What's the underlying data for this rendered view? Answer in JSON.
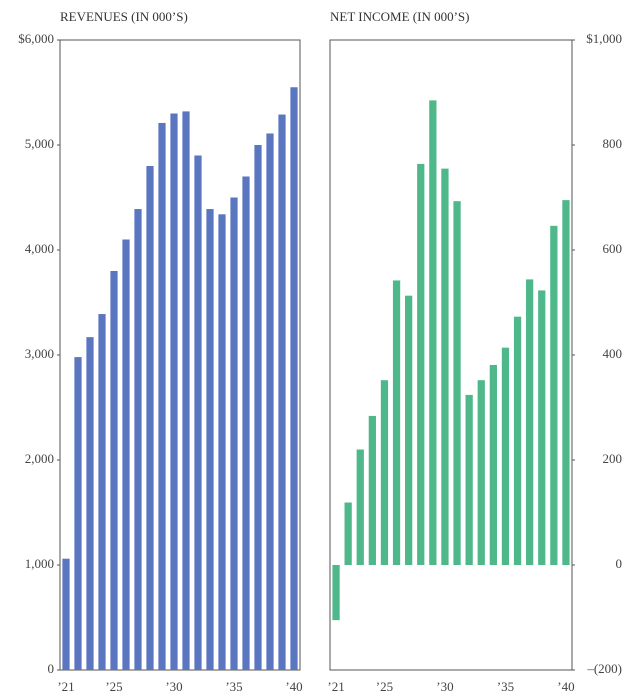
{
  "chart_data": [
    {
      "type": "bar",
      "title": "REVENUES (IN 000’S)",
      "categories": [
        "’21",
        null,
        null,
        null,
        "’25",
        null,
        null,
        null,
        null,
        "’30",
        null,
        null,
        null,
        null,
        "’35",
        null,
        null,
        null,
        null,
        "’40"
      ],
      "values": [
        1060,
        2980,
        3170,
        3390,
        3800,
        4100,
        4390,
        4800,
        5210,
        5300,
        5320,
        4900,
        4390,
        4340,
        4500,
        4700,
        5000,
        5110,
        5290,
        5550
      ],
      "color": "#5b76c0",
      "ylim": [
        0,
        6000
      ],
      "yticks": [
        0,
        {
          "value": 1000,
          "label": "1,000"
        },
        {
          "value": 2000,
          "label": "2,000"
        },
        {
          "value": 3000,
          "label": "3,000"
        },
        {
          "value": 4000,
          "label": "4,000"
        },
        {
          "value": 5000,
          "label": "5,000"
        },
        {
          "value": 6000,
          "label": "$6,000"
        }
      ],
      "y_axis_side": "left"
    },
    {
      "type": "bar",
      "title": "NET INCOME (IN 000’S)",
      "categories": [
        "’21",
        null,
        null,
        null,
        "’25",
        null,
        null,
        null,
        null,
        "’30",
        null,
        null,
        null,
        null,
        "’35",
        null,
        null,
        null,
        null,
        "’40"
      ],
      "values": [
        -105,
        119,
        220,
        284,
        352,
        542,
        513,
        764,
        885,
        755,
        693,
        324,
        352,
        381,
        414,
        473,
        544,
        523,
        646,
        695
      ],
      "color": "#4fb88a",
      "ylim": [
        -200,
        1000
      ],
      "yticks": [
        {
          "value": -200,
          "label": "–(200)"
        },
        0,
        200,
        400,
        600,
        800,
        {
          "value": 1000,
          "label": "$1,000"
        }
      ],
      "y_axis_side": "right"
    }
  ]
}
